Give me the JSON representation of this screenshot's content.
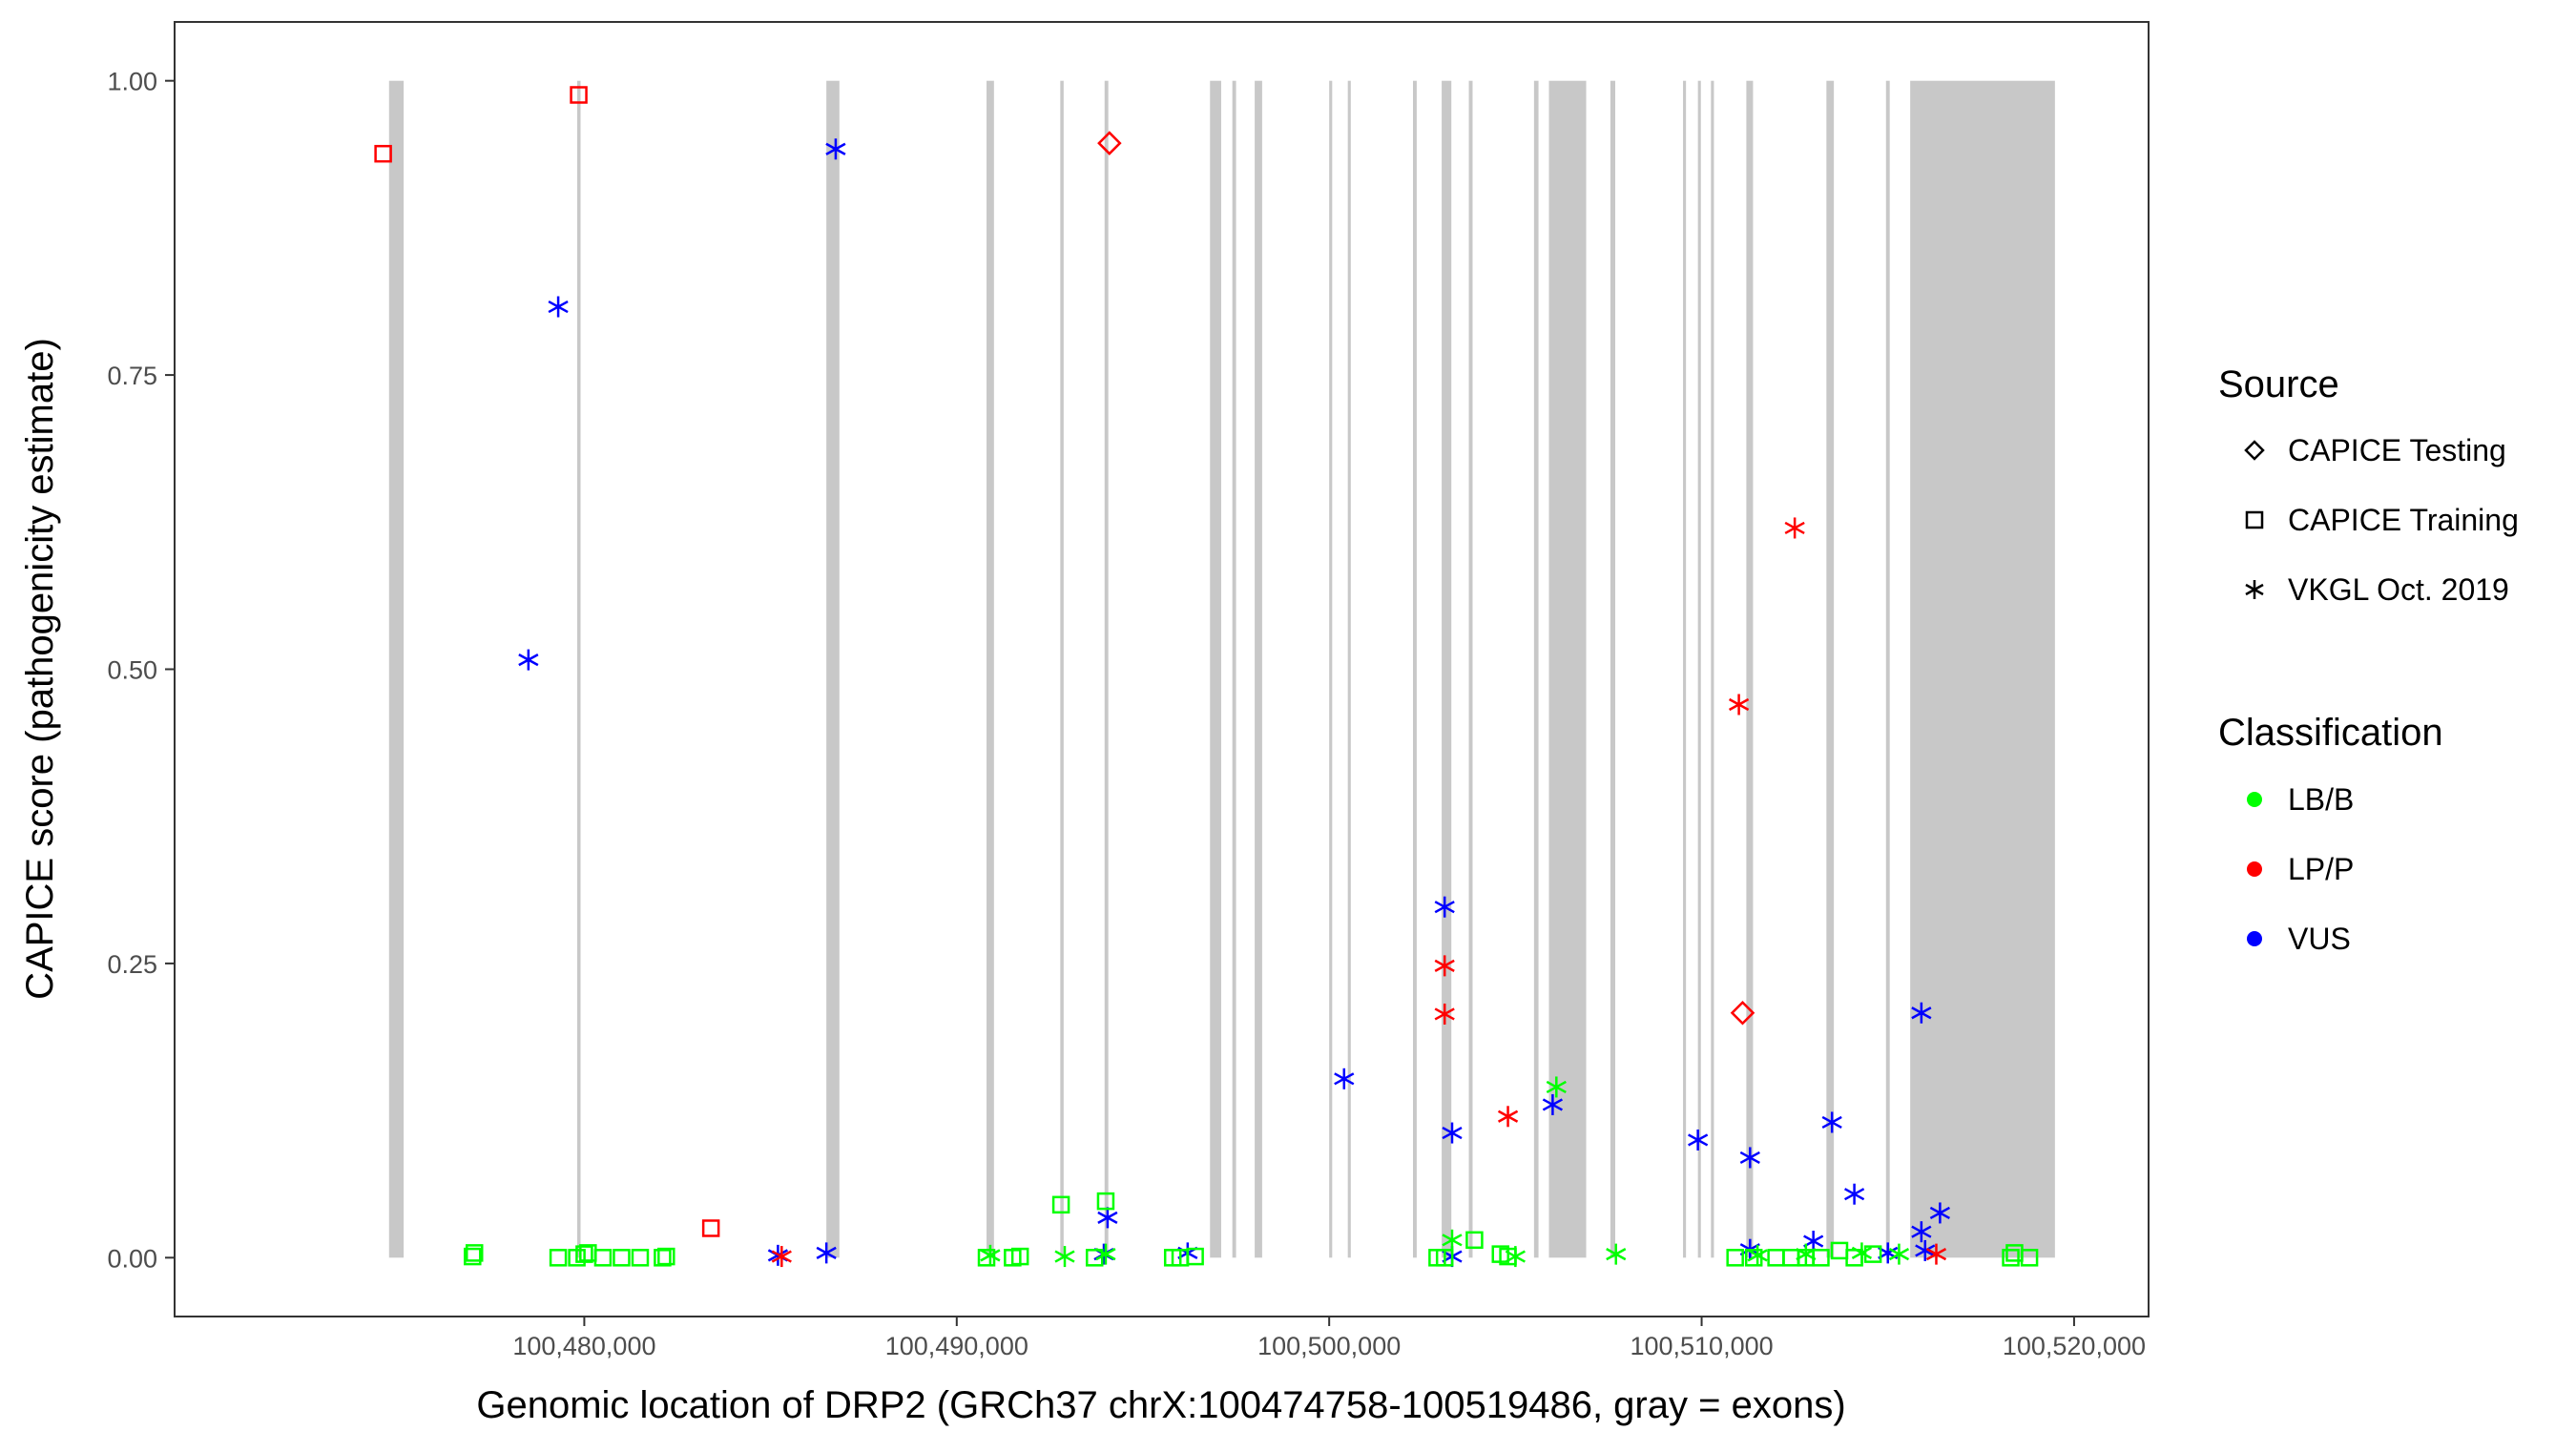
{
  "chart_data": {
    "type": "scatter",
    "xlabel": "Genomic location of DRP2 (GRCh37 chrX:100474758-100519486, gray = exons)",
    "ylabel": "CAPICE score (pathogenicity estimate)",
    "xlim": [
      100469000,
      100522000
    ],
    "ylim": [
      -0.05,
      1.05
    ],
    "x_ticks": [
      100480000,
      100490000,
      100500000,
      100510000,
      100520000
    ],
    "x_tick_labels": [
      "100,480,000",
      "100,490,000",
      "100,500,000",
      "100,510,000",
      "100,520,000"
    ],
    "y_ticks": [
      0,
      0.25,
      0.5,
      0.75,
      1
    ],
    "y_tick_labels": [
      "0.00",
      "0.25",
      "0.50",
      "0.75",
      "1.00"
    ],
    "grid": false,
    "legend_placement": "right",
    "exons": [
      [
        100474758,
        100475150
      ],
      [
        100479810,
        100479900
      ],
      [
        100486500,
        100486850
      ],
      [
        100490800,
        100491000
      ],
      [
        100492780,
        100492870
      ],
      [
        100493970,
        100494070
      ],
      [
        100496800,
        100497100
      ],
      [
        100497400,
        100497500
      ],
      [
        100498000,
        100498200
      ],
      [
        100500000,
        100500080
      ],
      [
        100500500,
        100500580
      ],
      [
        100502250,
        100502350
      ],
      [
        100503020,
        100503280
      ],
      [
        100503750,
        100503850
      ],
      [
        100505500,
        100505620
      ],
      [
        100505900,
        100506900
      ],
      [
        100507550,
        100507680
      ],
      [
        100509500,
        100509580
      ],
      [
        100509900,
        100509980
      ],
      [
        100510250,
        100510330
      ],
      [
        100511200,
        100511380
      ],
      [
        100513350,
        100513550
      ],
      [
        100514950,
        100515050
      ],
      [
        100515600,
        100519486
      ]
    ],
    "legends": {
      "source": {
        "title": "Source",
        "items": [
          {
            "label": "CAPICE Testing",
            "shape": "diamond"
          },
          {
            "label": "CAPICE Training",
            "shape": "square"
          },
          {
            "label": "VKGL Oct. 2019",
            "shape": "asterisk"
          }
        ]
      },
      "classification": {
        "title": "Classification",
        "items": [
          {
            "label": "LB/B",
            "color": "#00ff00"
          },
          {
            "label": "LP/P",
            "color": "#ff0000"
          },
          {
            "label": "VUS",
            "color": "#0000ff"
          }
        ]
      }
    },
    "colors": {
      "LB/B": "#00ff00",
      "LP/P": "#ff0000",
      "VUS": "#0000ff"
    },
    "points": [
      {
        "x": 100474600,
        "y": 0.938,
        "source": "CAPICE Training",
        "class": "LP/P"
      },
      {
        "x": 100479850,
        "y": 0.988,
        "source": "CAPICE Training",
        "class": "LP/P"
      },
      {
        "x": 100483400,
        "y": 0.025,
        "source": "CAPICE Training",
        "class": "LP/P"
      },
      {
        "x": 100494100,
        "y": 0.947,
        "source": "CAPICE Testing",
        "class": "LP/P"
      },
      {
        "x": 100511100,
        "y": 0.208,
        "source": "CAPICE Testing",
        "class": "LP/P"
      },
      {
        "x": 100486750,
        "y": 0.942,
        "source": "VKGL Oct. 2019",
        "class": "VUS"
      },
      {
        "x": 100479300,
        "y": 0.808,
        "source": "VKGL Oct. 2019",
        "class": "VUS"
      },
      {
        "x": 100478500,
        "y": 0.508,
        "source": "VKGL Oct. 2019",
        "class": "VUS"
      },
      {
        "x": 100485200,
        "y": 0.002,
        "source": "VKGL Oct. 2019",
        "class": "VUS"
      },
      {
        "x": 100486500,
        "y": 0.004,
        "source": "VKGL Oct. 2019",
        "class": "VUS"
      },
      {
        "x": 100494050,
        "y": 0.034,
        "source": "VKGL Oct. 2019",
        "class": "VUS"
      },
      {
        "x": 100493950,
        "y": 0.003,
        "source": "VKGL Oct. 2019",
        "class": "VUS"
      },
      {
        "x": 100496200,
        "y": 0.004,
        "source": "VKGL Oct. 2019",
        "class": "VUS"
      },
      {
        "x": 100500400,
        "y": 0.152,
        "source": "VKGL Oct. 2019",
        "class": "VUS"
      },
      {
        "x": 100503100,
        "y": 0.298,
        "source": "VKGL Oct. 2019",
        "class": "VUS"
      },
      {
        "x": 100503300,
        "y": 0.106,
        "source": "VKGL Oct. 2019",
        "class": "VUS"
      },
      {
        "x": 100503300,
        "y": 0.001,
        "source": "VKGL Oct. 2019",
        "class": "VUS"
      },
      {
        "x": 100506000,
        "y": 0.13,
        "source": "VKGL Oct. 2019",
        "class": "VUS"
      },
      {
        "x": 100509900,
        "y": 0.1,
        "source": "VKGL Oct. 2019",
        "class": "VUS"
      },
      {
        "x": 100511300,
        "y": 0.085,
        "source": "VKGL Oct. 2019",
        "class": "VUS"
      },
      {
        "x": 100511300,
        "y": 0.007,
        "source": "VKGL Oct. 2019",
        "class": "VUS"
      },
      {
        "x": 100513000,
        "y": 0.014,
        "source": "VKGL Oct. 2019",
        "class": "VUS"
      },
      {
        "x": 100513500,
        "y": 0.115,
        "source": "VKGL Oct. 2019",
        "class": "VUS"
      },
      {
        "x": 100514100,
        "y": 0.054,
        "source": "VKGL Oct. 2019",
        "class": "VUS"
      },
      {
        "x": 100515000,
        "y": 0.004,
        "source": "VKGL Oct. 2019",
        "class": "VUS"
      },
      {
        "x": 100515900,
        "y": 0.208,
        "source": "VKGL Oct. 2019",
        "class": "VUS"
      },
      {
        "x": 100515900,
        "y": 0.022,
        "source": "VKGL Oct. 2019",
        "class": "VUS"
      },
      {
        "x": 100516000,
        "y": 0.006,
        "source": "VKGL Oct. 2019",
        "class": "VUS"
      },
      {
        "x": 100516400,
        "y": 0.038,
        "source": "VKGL Oct. 2019",
        "class": "VUS"
      },
      {
        "x": 100485300,
        "y": 0.001,
        "source": "VKGL Oct. 2019",
        "class": "LP/P"
      },
      {
        "x": 100503100,
        "y": 0.248,
        "source": "VKGL Oct. 2019",
        "class": "LP/P"
      },
      {
        "x": 100503100,
        "y": 0.207,
        "source": "VKGL Oct. 2019",
        "class": "LP/P"
      },
      {
        "x": 100504800,
        "y": 0.12,
        "source": "VKGL Oct. 2019",
        "class": "LP/P"
      },
      {
        "x": 100511000,
        "y": 0.47,
        "source": "VKGL Oct. 2019",
        "class": "LP/P"
      },
      {
        "x": 100512500,
        "y": 0.62,
        "source": "VKGL Oct. 2019",
        "class": "LP/P"
      },
      {
        "x": 100516300,
        "y": 0.003,
        "source": "VKGL Oct. 2019",
        "class": "LP/P"
      },
      {
        "x": 100506100,
        "y": 0.145,
        "source": "VKGL Oct. 2019",
        "class": "LB/B"
      },
      {
        "x": 100503300,
        "y": 0.015,
        "source": "VKGL Oct. 2019",
        "class": "LB/B"
      },
      {
        "x": 100490900,
        "y": 0.002,
        "source": "VKGL Oct. 2019",
        "class": "LB/B"
      },
      {
        "x": 100492900,
        "y": 0.001,
        "source": "VKGL Oct. 2019",
        "class": "LB/B"
      },
      {
        "x": 100494000,
        "y": 0.003,
        "source": "VKGL Oct. 2019",
        "class": "LB/B"
      },
      {
        "x": 100507700,
        "y": 0.003,
        "source": "VKGL Oct. 2019",
        "class": "LB/B"
      },
      {
        "x": 100505000,
        "y": 0.001,
        "source": "VKGL Oct. 2019",
        "class": "LB/B"
      },
      {
        "x": 100511500,
        "y": 0.002,
        "source": "VKGL Oct. 2019",
        "class": "LB/B"
      },
      {
        "x": 100512800,
        "y": 0.003,
        "source": "VKGL Oct. 2019",
        "class": "LB/B"
      },
      {
        "x": 100514300,
        "y": 0.004,
        "source": "VKGL Oct. 2019",
        "class": "LB/B"
      },
      {
        "x": 100515300,
        "y": 0.003,
        "source": "VKGL Oct. 2019",
        "class": "LB/B"
      },
      {
        "x": 100477000,
        "y": 0.001,
        "source": "CAPICE Training",
        "class": "LB/B"
      },
      {
        "x": 100477050,
        "y": 0.004,
        "source": "CAPICE Training",
        "class": "LB/B"
      },
      {
        "x": 100479300,
        "y": 0.0,
        "source": "CAPICE Training",
        "class": "LB/B"
      },
      {
        "x": 100479800,
        "y": 0.0,
        "source": "CAPICE Training",
        "class": "LB/B"
      },
      {
        "x": 100480000,
        "y": 0.003,
        "source": "CAPICE Training",
        "class": "LB/B"
      },
      {
        "x": 100480100,
        "y": 0.004,
        "source": "CAPICE Training",
        "class": "LB/B"
      },
      {
        "x": 100480500,
        "y": 0.0,
        "source": "CAPICE Training",
        "class": "LB/B"
      },
      {
        "x": 100481000,
        "y": 0.0,
        "source": "CAPICE Training",
        "class": "LB/B"
      },
      {
        "x": 100481500,
        "y": 0.0,
        "source": "CAPICE Training",
        "class": "LB/B"
      },
      {
        "x": 100482100,
        "y": 0.0,
        "source": "CAPICE Training",
        "class": "LB/B"
      },
      {
        "x": 100482200,
        "y": 0.001,
        "source": "CAPICE Training",
        "class": "LB/B"
      },
      {
        "x": 100490800,
        "y": 0.0,
        "source": "CAPICE Training",
        "class": "LB/B"
      },
      {
        "x": 100491500,
        "y": 0.0,
        "source": "CAPICE Training",
        "class": "LB/B"
      },
      {
        "x": 100491700,
        "y": 0.001,
        "source": "CAPICE Training",
        "class": "LB/B"
      },
      {
        "x": 100492800,
        "y": 0.045,
        "source": "CAPICE Training",
        "class": "LB/B"
      },
      {
        "x": 100493700,
        "y": 0.0,
        "source": "CAPICE Training",
        "class": "LB/B"
      },
      {
        "x": 100494000,
        "y": 0.048,
        "source": "CAPICE Training",
        "class": "LB/B"
      },
      {
        "x": 100495800,
        "y": 0.0,
        "source": "CAPICE Training",
        "class": "LB/B"
      },
      {
        "x": 100496000,
        "y": 0.0,
        "source": "CAPICE Training",
        "class": "LB/B"
      },
      {
        "x": 100496400,
        "y": 0.001,
        "source": "CAPICE Training",
        "class": "LB/B"
      },
      {
        "x": 100502900,
        "y": 0.0,
        "source": "CAPICE Training",
        "class": "LB/B"
      },
      {
        "x": 100503100,
        "y": 0.0,
        "source": "CAPICE Training",
        "class": "LB/B"
      },
      {
        "x": 100503900,
        "y": 0.015,
        "source": "CAPICE Training",
        "class": "LB/B"
      },
      {
        "x": 100504600,
        "y": 0.003,
        "source": "CAPICE Training",
        "class": "LB/B"
      },
      {
        "x": 100504800,
        "y": 0.001,
        "source": "CAPICE Training",
        "class": "LB/B"
      },
      {
        "x": 100510900,
        "y": 0.0,
        "source": "CAPICE Training",
        "class": "LB/B"
      },
      {
        "x": 100511400,
        "y": 0.0,
        "source": "CAPICE Training",
        "class": "LB/B"
      },
      {
        "x": 100512000,
        "y": 0.0,
        "source": "CAPICE Training",
        "class": "LB/B"
      },
      {
        "x": 100512400,
        "y": 0.0,
        "source": "CAPICE Training",
        "class": "LB/B"
      },
      {
        "x": 100512800,
        "y": 0.0,
        "source": "CAPICE Training",
        "class": "LB/B"
      },
      {
        "x": 100513200,
        "y": 0.0,
        "source": "CAPICE Training",
        "class": "LB/B"
      },
      {
        "x": 100513700,
        "y": 0.006,
        "source": "CAPICE Training",
        "class": "LB/B"
      },
      {
        "x": 100514100,
        "y": 0.0,
        "source": "CAPICE Training",
        "class": "LB/B"
      },
      {
        "x": 100514600,
        "y": 0.003,
        "source": "CAPICE Training",
        "class": "LB/B"
      },
      {
        "x": 100518300,
        "y": 0.0,
        "source": "CAPICE Training",
        "class": "LB/B"
      },
      {
        "x": 100518400,
        "y": 0.004,
        "source": "CAPICE Training",
        "class": "LB/B"
      },
      {
        "x": 100518800,
        "y": 0.0,
        "source": "CAPICE Training",
        "class": "LB/B"
      }
    ]
  }
}
